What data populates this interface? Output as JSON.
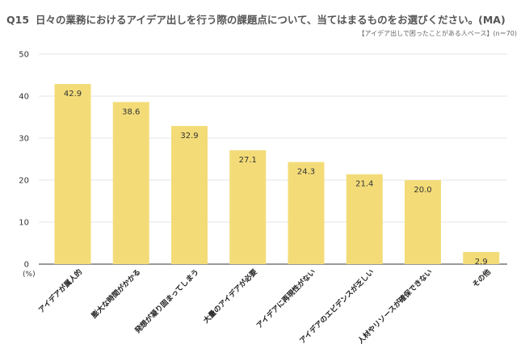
{
  "header": {
    "qnum": "Q15",
    "title": "日々の業務におけるアイデア出しを行う際の課題点について、当てはまるものをお選びください。(MA)",
    "base_label": "【アイデア出しで困ったことがある人ベース】",
    "base_n": "(n＝70)"
  },
  "colors": {
    "bar": "#F3DC78",
    "grid": "#DDDDDD",
    "axis": "#333333"
  },
  "chart_data": {
    "type": "bar",
    "categories": [
      "アイデアが属人的",
      "膨大な時間がかかる",
      "発想が凝り固まってしまう",
      "大量のアイデアが必要",
      "アイデアに再現性がない",
      "アイデアのエビデンスが乏しい",
      "人材やリソースが確保できない",
      "その他"
    ],
    "values": [
      42.9,
      38.6,
      32.9,
      27.1,
      24.3,
      21.4,
      20.0,
      2.9
    ],
    "value_labels": [
      "42.9",
      "38.6",
      "32.9",
      "27.1",
      "24.3",
      "21.4",
      "20.0",
      "2.9"
    ],
    "ylim": [
      0,
      50
    ],
    "yticks": [
      "0",
      "10",
      "20",
      "30",
      "40",
      "50"
    ],
    "yunit": "(%)",
    "grid": true
  }
}
